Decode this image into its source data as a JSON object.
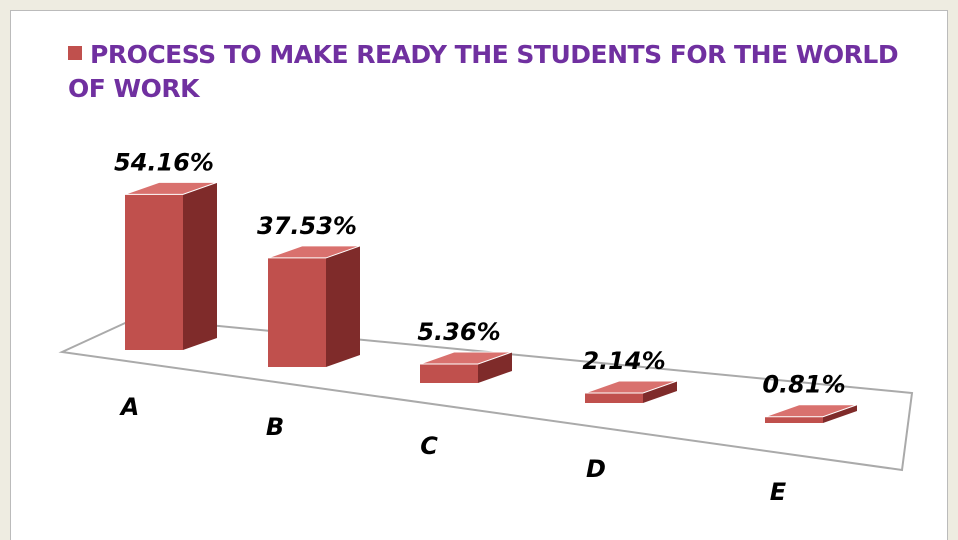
{
  "chart_data": {
    "type": "bar3d",
    "series": [
      {
        "name": "PROCESS TO MAKE READY THE STUDENTS FOR THE WORLD OF WORK",
        "color": "#c0504d",
        "values": [
          54.16,
          37.53,
          5.36,
          2.14,
          0.81
        ],
        "value_labels": [
          "54.16%",
          "37.53%",
          "5.36%",
          "2.14%",
          "0.81%"
        ]
      }
    ],
    "categories": [
      "A",
      "B",
      "C",
      "D",
      "E"
    ]
  }
}
